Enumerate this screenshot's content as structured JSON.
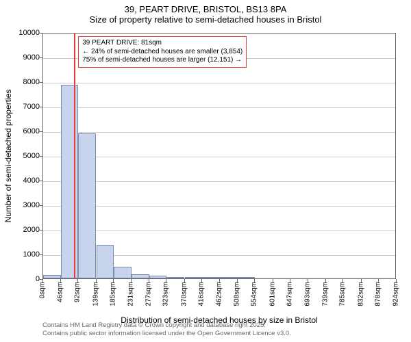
{
  "title": {
    "line1": "39, PEART DRIVE, BRISTOL, BS13 8PA",
    "line2": "Size of property relative to semi-detached houses in Bristol"
  },
  "chart": {
    "type": "histogram",
    "background_color": "#ffffff",
    "grid_color": "#cccccc",
    "axis_color": "#666666",
    "bar_fill": "#c8d4ec",
    "bar_border": "#7a8bb0",
    "marker_color": "#e53935",
    "ylabel": "Number of semi-detached properties",
    "xlabel": "Distribution of semi-detached houses by size in Bristol",
    "ylim": [
      0,
      10000
    ],
    "ytick_step": 1000,
    "yticks": [
      0,
      1000,
      2000,
      3000,
      4000,
      5000,
      6000,
      7000,
      8000,
      9000,
      10000
    ],
    "xticks": [
      "0sqm",
      "46sqm",
      "92sqm",
      "139sqm",
      "185sqm",
      "231sqm",
      "277sqm",
      "323sqm",
      "370sqm",
      "416sqm",
      "462sqm",
      "508sqm",
      "554sqm",
      "601sqm",
      "647sqm",
      "693sqm",
      "739sqm",
      "785sqm",
      "832sqm",
      "878sqm",
      "924sqm"
    ],
    "xtick_positions": [
      0,
      46,
      92,
      139,
      185,
      231,
      277,
      323,
      370,
      416,
      462,
      508,
      554,
      601,
      647,
      693,
      739,
      785,
      832,
      878,
      924
    ],
    "xlim": [
      0,
      924
    ],
    "bin_width": 46,
    "bars": [
      {
        "x0": 0,
        "count": 150
      },
      {
        "x0": 46,
        "count": 7850
      },
      {
        "x0": 92,
        "count": 5900
      },
      {
        "x0": 139,
        "count": 1350
      },
      {
        "x0": 185,
        "count": 470
      },
      {
        "x0": 231,
        "count": 180
      },
      {
        "x0": 277,
        "count": 100
      },
      {
        "x0": 323,
        "count": 60
      },
      {
        "x0": 370,
        "count": 30
      },
      {
        "x0": 416,
        "count": 15
      },
      {
        "x0": 462,
        "count": 10
      },
      {
        "x0": 508,
        "count": 5
      }
    ],
    "marker_x": 81,
    "annotation": {
      "line1": "39 PEART DRIVE: 81sqm",
      "line2": "← 24% of semi-detached houses are smaller (3,854)",
      "line3": "75% of semi-detached houses are larger (12,151) →"
    },
    "label_fontsize": 12,
    "tick_fontsize": 11,
    "xtick_fontsize": 10,
    "annotation_fontsize": 10
  },
  "footer": {
    "line1": "Contains HM Land Registry data © Crown copyright and database right 2025.",
    "line2": "Contains public sector information licensed under the Open Government Licence v3.0."
  }
}
